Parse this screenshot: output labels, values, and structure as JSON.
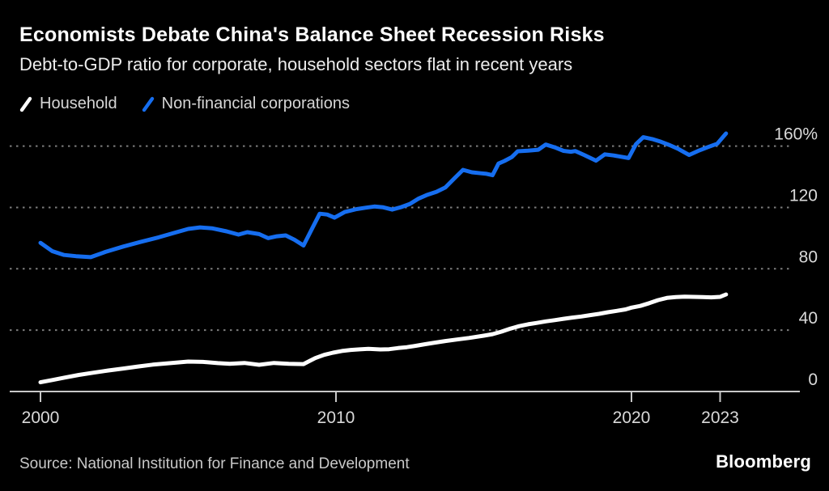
{
  "header": {
    "title": "Economists Debate China's Balance Sheet Recession Risks",
    "subtitle": "Debt-to-GDP ratio for corporate, household sectors flat in recent years"
  },
  "legend": [
    {
      "label": "Household",
      "color": "#ffffff"
    },
    {
      "label": "Non-financial corporations",
      "color": "#166ef0"
    }
  ],
  "footer": {
    "source": "Source: National Institution for Finance and Development",
    "brand": "Bloomberg"
  },
  "colors": {
    "background": "#000000",
    "household_line": "#ffffff",
    "nfc_line": "#166ef0",
    "gridline": "#7d7d7d",
    "axis": "#c8c8c8",
    "tick_label": "#d9d9d9"
  },
  "chart_data": {
    "type": "line",
    "title": "Economists Debate China's Balance Sheet Recession Risks",
    "subtitle": "Debt-to-GDP ratio for corporate, household sectors flat in recent years",
    "xlabel": "",
    "ylabel": "",
    "unit": "%",
    "xlim": [
      2000,
      2023.2
    ],
    "ylim": [
      0,
      170
    ],
    "grid": "horizontal-dotted",
    "legend_position": "top-left",
    "x_ticks": [
      {
        "value": 2000,
        "label": "2000"
      },
      {
        "value": 2010,
        "label": "2010"
      },
      {
        "value": 2020,
        "label": "2020"
      },
      {
        "value": 2023,
        "label": "2023"
      }
    ],
    "y_ticks": [
      {
        "value": 160,
        "label": "160%"
      },
      {
        "value": 120,
        "label": "120"
      },
      {
        "value": 80,
        "label": "80"
      },
      {
        "value": 40,
        "label": "40"
      },
      {
        "value": 0,
        "label": "0"
      }
    ],
    "series": [
      {
        "name": "Household",
        "color": "#ffffff",
        "points": [
          [
            2000.0,
            6.0
          ],
          [
            2000.4,
            7.5
          ],
          [
            2000.8,
            9.0
          ],
          [
            2001.3,
            10.8
          ],
          [
            2001.8,
            12.3
          ],
          [
            2002.3,
            13.7
          ],
          [
            2002.8,
            15.0
          ],
          [
            2003.3,
            16.3
          ],
          [
            2003.8,
            17.5
          ],
          [
            2004.2,
            18.2
          ],
          [
            2004.6,
            18.9
          ],
          [
            2005.0,
            19.5
          ],
          [
            2005.5,
            19.3
          ],
          [
            2006.0,
            18.5
          ],
          [
            2006.4,
            18.1
          ],
          [
            2006.9,
            18.6
          ],
          [
            2007.4,
            17.4
          ],
          [
            2007.9,
            18.6
          ],
          [
            2008.4,
            18.1
          ],
          [
            2008.9,
            17.9
          ],
          [
            2009.3,
            21.8
          ],
          [
            2009.6,
            23.9
          ],
          [
            2009.9,
            25.3
          ],
          [
            2010.2,
            26.4
          ],
          [
            2010.5,
            27.1
          ],
          [
            2010.8,
            27.5
          ],
          [
            2011.1,
            27.8
          ],
          [
            2011.5,
            27.4
          ],
          [
            2011.8,
            27.6
          ],
          [
            2012.1,
            28.3
          ],
          [
            2012.4,
            28.9
          ],
          [
            2012.7,
            29.8
          ],
          [
            2013.0,
            30.8
          ],
          [
            2013.3,
            31.7
          ],
          [
            2013.7,
            32.9
          ],
          [
            2014.1,
            33.9
          ],
          [
            2014.5,
            34.9
          ],
          [
            2015.0,
            36.4
          ],
          [
            2015.3,
            37.4
          ],
          [
            2015.6,
            39.0
          ],
          [
            2015.9,
            41.0
          ],
          [
            2016.2,
            42.6
          ],
          [
            2016.5,
            43.8
          ],
          [
            2016.8,
            44.7
          ],
          [
            2017.1,
            45.7
          ],
          [
            2017.4,
            46.5
          ],
          [
            2017.7,
            47.4
          ],
          [
            2018.0,
            48.2
          ],
          [
            2018.3,
            48.9
          ],
          [
            2018.6,
            49.8
          ],
          [
            2018.9,
            50.6
          ],
          [
            2019.2,
            51.7
          ],
          [
            2019.5,
            52.6
          ],
          [
            2019.8,
            53.5
          ],
          [
            2020.0,
            54.7
          ],
          [
            2020.3,
            55.8
          ],
          [
            2020.6,
            57.6
          ],
          [
            2020.9,
            59.6
          ],
          [
            2021.2,
            61.0
          ],
          [
            2021.5,
            61.6
          ],
          [
            2021.8,
            61.8
          ],
          [
            2022.1,
            61.7
          ],
          [
            2022.4,
            61.6
          ],
          [
            2022.7,
            61.4
          ],
          [
            2023.0,
            61.7
          ],
          [
            2023.2,
            63.3
          ]
        ]
      },
      {
        "name": "Non-financial corporations",
        "color": "#166ef0",
        "points": [
          [
            2000.0,
            96.9
          ],
          [
            2000.4,
            91.5
          ],
          [
            2000.8,
            89.0
          ],
          [
            2001.2,
            88.2
          ],
          [
            2001.7,
            87.6
          ],
          [
            2002.2,
            91.0
          ],
          [
            2002.8,
            94.5
          ],
          [
            2003.4,
            97.6
          ],
          [
            2004.0,
            100.5
          ],
          [
            2004.5,
            103.3
          ],
          [
            2005.0,
            106.0
          ],
          [
            2005.4,
            107.0
          ],
          [
            2005.8,
            106.4
          ],
          [
            2006.3,
            104.4
          ],
          [
            2006.7,
            102.3
          ],
          [
            2007.0,
            103.9
          ],
          [
            2007.4,
            102.6
          ],
          [
            2007.7,
            100.0
          ],
          [
            2008.0,
            101.2
          ],
          [
            2008.3,
            101.8
          ],
          [
            2008.6,
            98.9
          ],
          [
            2008.9,
            95.2
          ],
          [
            2009.2,
            106.5
          ],
          [
            2009.45,
            115.9
          ],
          [
            2009.7,
            115.4
          ],
          [
            2009.95,
            113.3
          ],
          [
            2010.3,
            117.0
          ],
          [
            2010.7,
            118.9
          ],
          [
            2011.0,
            119.8
          ],
          [
            2011.3,
            120.6
          ],
          [
            2011.6,
            120.1
          ],
          [
            2011.9,
            118.6
          ],
          [
            2012.2,
            120.2
          ],
          [
            2012.5,
            122.3
          ],
          [
            2012.8,
            125.8
          ],
          [
            2013.1,
            128.3
          ],
          [
            2013.4,
            130.2
          ],
          [
            2013.7,
            133.0
          ],
          [
            2014.0,
            138.8
          ],
          [
            2014.3,
            144.5
          ],
          [
            2014.6,
            142.9
          ],
          [
            2014.9,
            142.3
          ],
          [
            2015.1,
            141.9
          ],
          [
            2015.3,
            141.0
          ],
          [
            2015.5,
            148.6
          ],
          [
            2015.7,
            150.3
          ],
          [
            2015.95,
            152.8
          ],
          [
            2016.15,
            156.6
          ],
          [
            2016.5,
            157.0
          ],
          [
            2016.85,
            157.6
          ],
          [
            2017.1,
            161.0
          ],
          [
            2017.4,
            159.2
          ],
          [
            2017.7,
            156.9
          ],
          [
            2017.95,
            156.3
          ],
          [
            2018.1,
            156.8
          ],
          [
            2018.4,
            154.2
          ],
          [
            2018.8,
            150.5
          ],
          [
            2019.1,
            154.6
          ],
          [
            2019.4,
            153.9
          ],
          [
            2019.9,
            152.2
          ],
          [
            2020.15,
            161.2
          ],
          [
            2020.4,
            165.8
          ],
          [
            2020.7,
            164.6
          ],
          [
            2021.0,
            162.8
          ],
          [
            2021.3,
            160.6
          ],
          [
            2021.6,
            158.0
          ],
          [
            2021.95,
            154.2
          ],
          [
            2022.3,
            157.2
          ],
          [
            2022.6,
            159.4
          ],
          [
            2022.9,
            161.5
          ],
          [
            2023.2,
            168.2
          ]
        ]
      }
    ]
  }
}
